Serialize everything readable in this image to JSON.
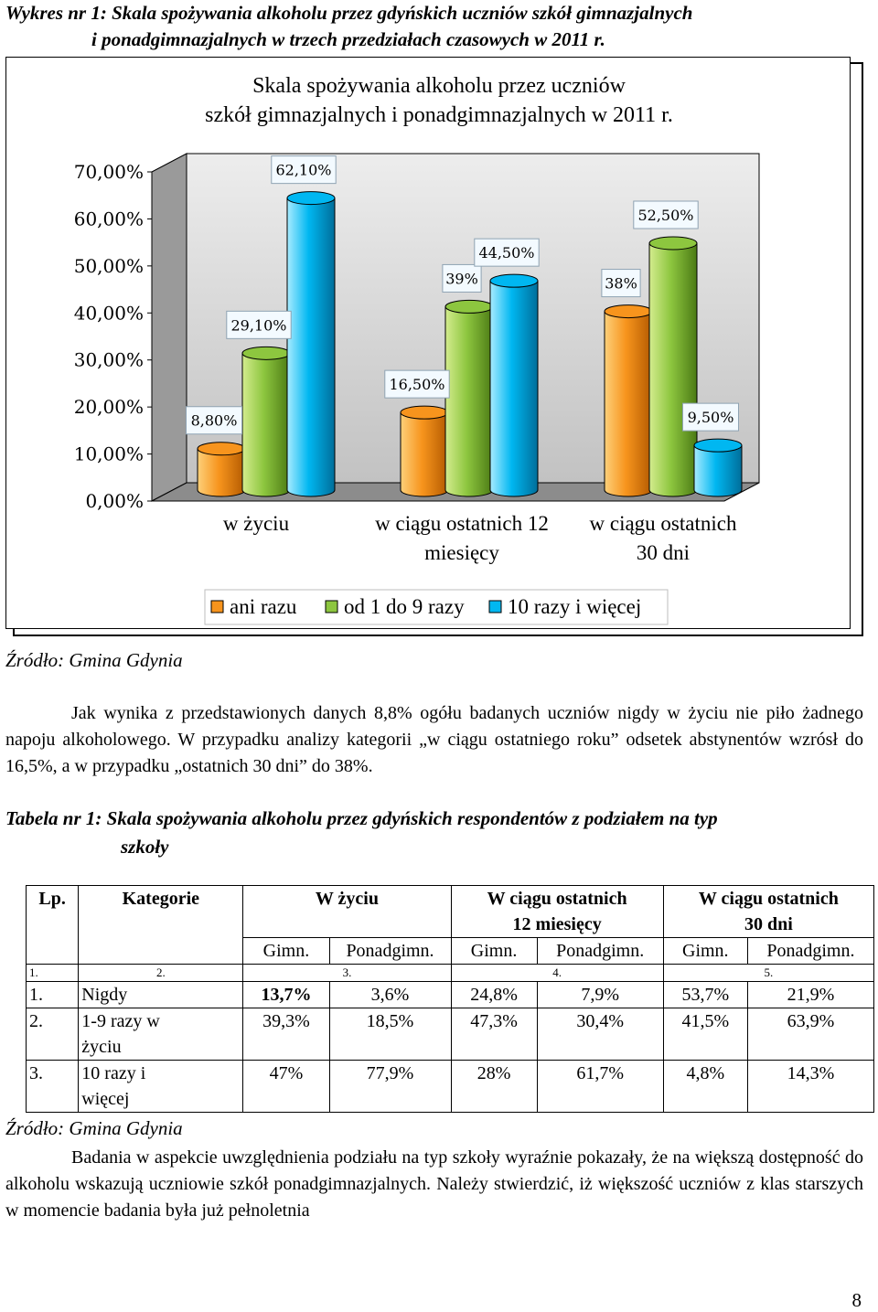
{
  "caption": {
    "line1": "Wykres  nr  1:  Skala  spożywania  alkoholu  przez  gdyńskich  uczniów  szkół  gimnazjalnych",
    "line2": "i ponadgimnazjalnych  w trzech przedziałach czasowych w 2011 r."
  },
  "colors": {
    "orange": "#F7941D",
    "green": "#8DC63F",
    "blue": "#00B7F1"
  },
  "chart_data": {
    "type": "bar",
    "title_line1": "Skala spożywania alkoholu przez uczniów",
    "title_line2": "szkół gimnazjalnych i ponadgimnazjalnych w 2011 r.",
    "categories": [
      "w życiu",
      "w ciągu ostatnich 12 miesięcy",
      "w ciągu ostatnich 30 dni"
    ],
    "category_lines": [
      [
        "w życiu"
      ],
      [
        "w ciągu ostatnich 12",
        "miesięcy"
      ],
      [
        "w ciągu ostatnich",
        "30 dni"
      ]
    ],
    "series": [
      {
        "name": "ani razu",
        "values": [
          8.8,
          16.5,
          38
        ],
        "labels": [
          "8,80%",
          "16,50%",
          "38%"
        ]
      },
      {
        "name": "od 1 do 9 razy",
        "values": [
          29.1,
          39,
          52.5
        ],
        "labels": [
          "29,10%",
          "39%",
          "52,50%"
        ]
      },
      {
        "name": "10 razy i więcej",
        "values": [
          62.1,
          44.5,
          9.5
        ],
        "labels": [
          "62,10%",
          "44,50%",
          "9,50%"
        ]
      }
    ],
    "yticks": [
      "0,00%",
      "10,00%",
      "20,00%",
      "30,00%",
      "40,00%",
      "50,00%",
      "60,00%",
      "70,00%"
    ],
    "ylim": [
      0,
      70
    ],
    "legend": "bottom",
    "grid": false
  },
  "chart_source": "Źródło: Gmina Gdynia",
  "paragraph1": "Jak wynika z przedstawionych danych 8,8% ogółu badanych uczniów  nigdy w życiu nie piło żadnego napoju alkoholowego. W przypadku analizy kategorii „w ciągu ostatniego roku” odsetek abstynentów wzrósł do 16,5%, a w przypadku „ostatnich 30 dni” do 38%.",
  "table_caption": {
    "line1": "Tabela nr 1: Skala  spożywania alkoholu przez gdyńskich respondentów z  podziałem na typ",
    "line2": "szkoły"
  },
  "table": {
    "h_lp": "Lp.",
    "h_kat": "Kategorie",
    "h_w_zyciu": "W życiu",
    "h_12_l1": "W ciągu ostatnich",
    "h_12_l2": "12 miesięcy",
    "h_30_l1": "W ciągu ostatnich",
    "h_30_l2": "30 dni",
    "sub_gimn": "Gimn.",
    "sub_ponad": "Ponadgimn.",
    "num": [
      "1.",
      "2.",
      "3.",
      "4.",
      "5."
    ],
    "rows": [
      {
        "lp": "1.",
        "kat": "Nigdy",
        "kat2": "",
        "v": [
          "13,7%",
          "3,6%",
          "24,8%",
          "7,9%",
          "53,7%",
          "21,9%"
        ]
      },
      {
        "lp": "2.",
        "kat": "1-9 razy w",
        "kat2": "życiu",
        "v": [
          "39,3%",
          "18,5%",
          "47,3%",
          "30,4%",
          "41,5%",
          "63,9%"
        ]
      },
      {
        "lp": "3.",
        "kat": "10 razy i",
        "kat2": "więcej",
        "v": [
          "47%",
          "77,9%",
          "28%",
          "61,7%",
          "4,8%",
          "14,3%"
        ]
      }
    ]
  },
  "table_source": "Źródło: Gmina Gdynia",
  "paragraph2": "Badania w aspekcie uwzględnienia podziału na typ szkoły wyraźnie pokazały, że na większą dostępność do alkoholu wskazują uczniowie szkół ponadgimnazjalnych. Należy stwierdzić, iż większość uczniów z klas starszych w momencie badania była już pełnoletnia",
  "page_number": "8"
}
